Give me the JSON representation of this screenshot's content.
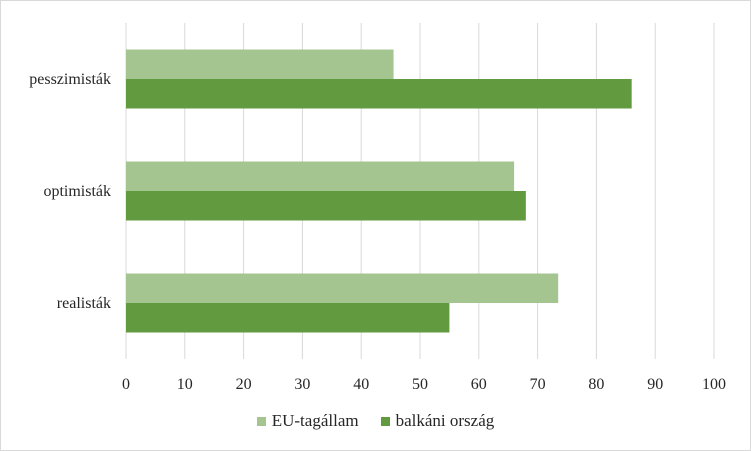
{
  "chart_data": {
    "type": "bar",
    "orientation": "horizontal",
    "categories": [
      "pesszimisták",
      "optimisták",
      "realisták"
    ],
    "series": [
      {
        "name": "EU-tagállam",
        "values": [
          45.5,
          66,
          73.5
        ],
        "color": "#a5c590"
      },
      {
        "name": "balkáni ország",
        "values": [
          86,
          68,
          55
        ],
        "color": "#629a3f"
      }
    ],
    "xlim": [
      0,
      100
    ],
    "xticks": [
      "0",
      "10",
      "20",
      "30",
      "40",
      "50",
      "60",
      "70",
      "80",
      "90",
      "100"
    ],
    "grid": true,
    "legend_position": "bottom"
  }
}
